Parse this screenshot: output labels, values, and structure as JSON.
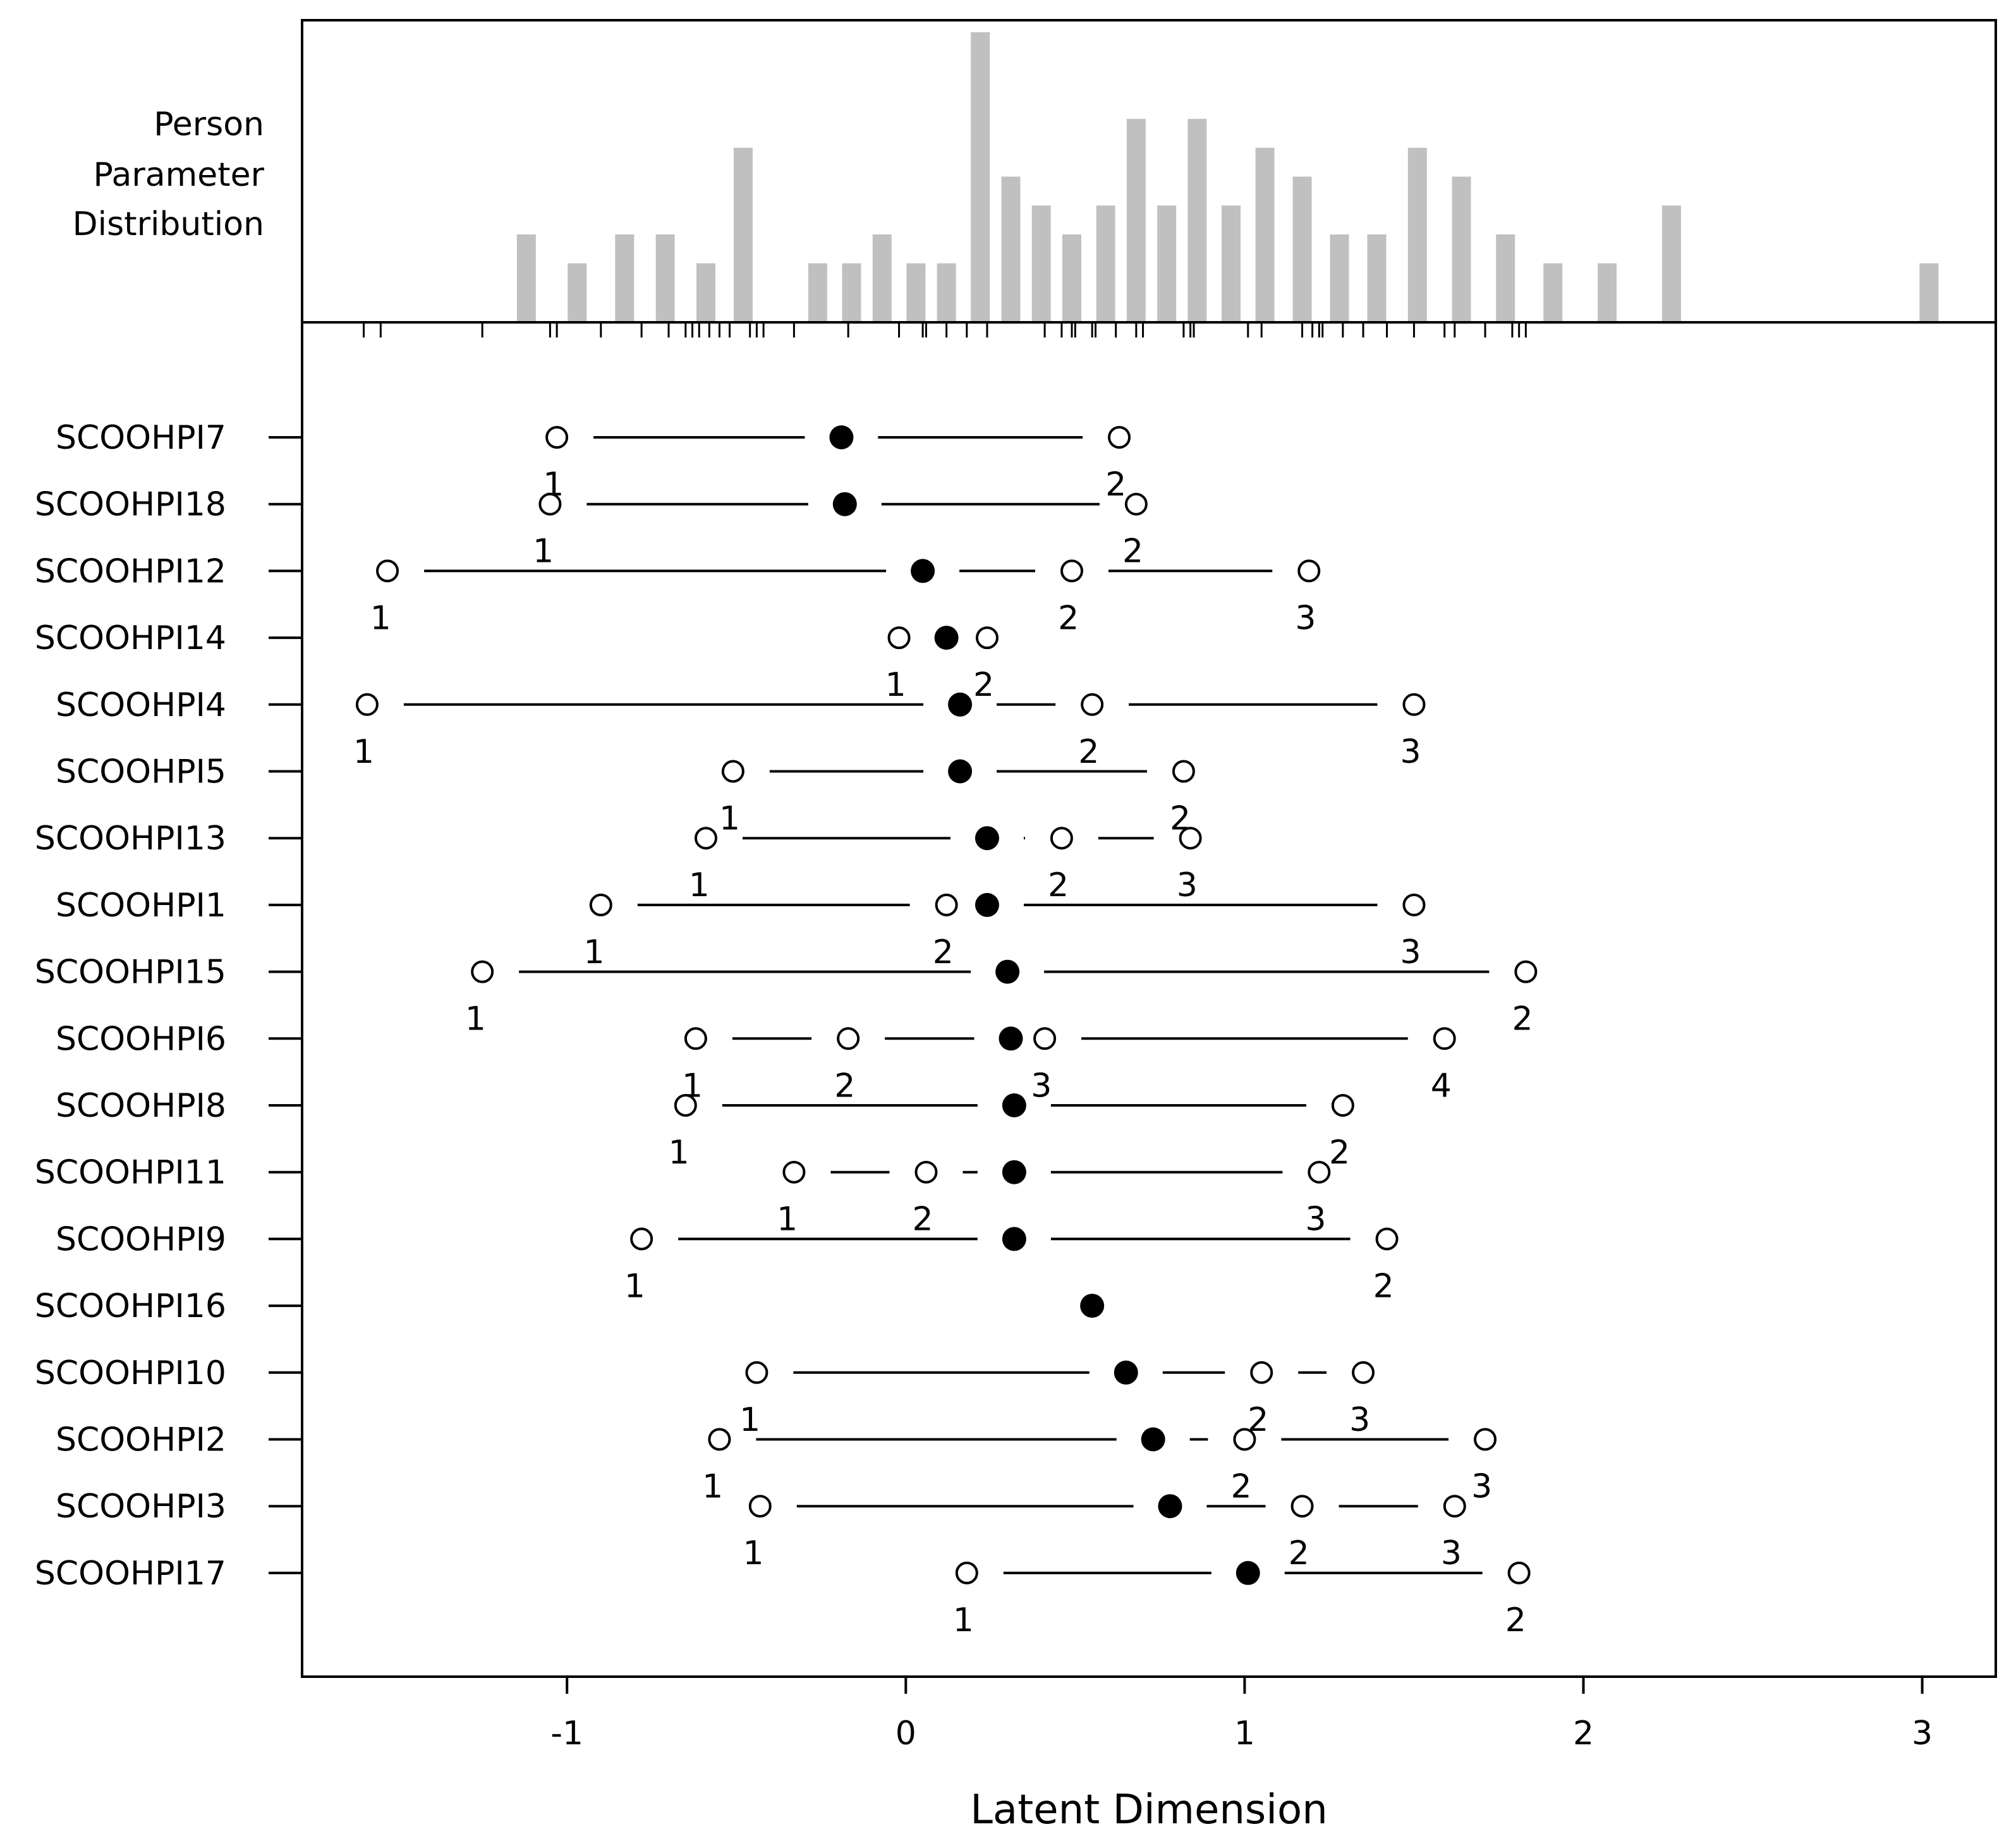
{
  "chart_data": {
    "type": "person-item map",
    "x_axis": {
      "label": "Latent Dimension",
      "range": [
        -1.8,
        3.2
      ],
      "ticks": [
        -1,
        0,
        1,
        2,
        3
      ],
      "tick_labels": [
        "-1",
        "0",
        "1",
        "2",
        "3"
      ]
    },
    "histogram": {
      "title_lines": [
        "Person",
        "Parameter",
        "Distribution"
      ],
      "color": "#c0c0c0",
      "max_count": 10,
      "bars": [
        {
          "x": -1.12,
          "count": 3
        },
        {
          "x": -0.97,
          "count": 2
        },
        {
          "x": -0.83,
          "count": 3
        },
        {
          "x": -0.71,
          "count": 3
        },
        {
          "x": -0.59,
          "count": 2
        },
        {
          "x": -0.48,
          "count": 6
        },
        {
          "x": -0.26,
          "count": 2
        },
        {
          "x": -0.16,
          "count": 2
        },
        {
          "x": -0.07,
          "count": 3
        },
        {
          "x": 0.03,
          "count": 2
        },
        {
          "x": 0.12,
          "count": 2
        },
        {
          "x": 0.22,
          "count": 10
        },
        {
          "x": 0.31,
          "count": 5
        },
        {
          "x": 0.4,
          "count": 4
        },
        {
          "x": 0.49,
          "count": 3
        },
        {
          "x": 0.59,
          "count": 4
        },
        {
          "x": 0.68,
          "count": 7
        },
        {
          "x": 0.77,
          "count": 4
        },
        {
          "x": 0.86,
          "count": 7
        },
        {
          "x": 0.96,
          "count": 4
        },
        {
          "x": 1.06,
          "count": 6
        },
        {
          "x": 1.17,
          "count": 5
        },
        {
          "x": 1.28,
          "count": 3
        },
        {
          "x": 1.39,
          "count": 3
        },
        {
          "x": 1.51,
          "count": 6
        },
        {
          "x": 1.64,
          "count": 5
        },
        {
          "x": 1.77,
          "count": 3
        },
        {
          "x": 1.91,
          "count": 2
        },
        {
          "x": 2.07,
          "count": 2
        },
        {
          "x": 2.26,
          "count": 4
        },
        {
          "x": 3.02,
          "count": 2
        }
      ]
    },
    "threshold_rug": [
      -1.6,
      -1.55,
      -1.25,
      -1.05,
      -1.03,
      -0.9,
      -0.78,
      -0.7,
      -0.65,
      -0.63,
      -0.61,
      -0.58,
      -0.55,
      -0.52,
      -0.46,
      -0.44,
      -0.42,
      -0.33,
      -0.17,
      -0.02,
      0.05,
      0.06,
      0.12,
      0.18,
      0.24,
      0.41,
      0.46,
      0.49,
      0.5,
      0.55,
      0.56,
      0.62,
      0.68,
      0.7,
      0.82,
      0.84,
      0.85,
      1.01,
      1.05,
      1.17,
      1.2,
      1.22,
      1.23,
      1.29,
      1.35,
      1.42,
      1.5,
      1.59,
      1.62,
      1.71,
      1.79,
      1.81,
      1.83
    ],
    "items": [
      {
        "name": "SCOOHPI7",
        "location": -0.19,
        "thresholds": [
          -1.03,
          0.63
        ],
        "labels": [
          {
            "text": "1",
            "x": -1.04,
            "pos": "below"
          },
          {
            "text": "2",
            "x": 0.62,
            "pos": "below"
          }
        ]
      },
      {
        "name": "SCOOHPI18",
        "location": -0.18,
        "thresholds": [
          -1.05,
          0.68
        ],
        "labels": [
          {
            "text": "1",
            "x": -1.07,
            "pos": "below"
          },
          {
            "text": "2",
            "x": 0.67,
            "pos": "below"
          }
        ]
      },
      {
        "name": "SCOOHPI12",
        "location": 0.05,
        "thresholds": [
          -1.53,
          0.49,
          1.19
        ],
        "labels": [
          {
            "text": "1",
            "x": -1.55,
            "pos": "below"
          },
          {
            "text": "2",
            "x": 0.48,
            "pos": "below"
          },
          {
            "text": "3",
            "x": 1.18,
            "pos": "below"
          }
        ]
      },
      {
        "name": "SCOOHPI14",
        "location": 0.12,
        "thresholds": [
          -0.02,
          0.24
        ],
        "labels": [
          {
            "text": "1",
            "x": -0.03,
            "pos": "below"
          },
          {
            "text": "2",
            "x": 0.23,
            "pos": "below"
          }
        ]
      },
      {
        "name": "SCOOHPI4",
        "location": 0.16,
        "thresholds": [
          -1.59,
          0.55,
          1.5
        ],
        "labels": [
          {
            "text": "1",
            "x": -1.6,
            "pos": "below"
          },
          {
            "text": "2",
            "x": 0.54,
            "pos": "below"
          },
          {
            "text": "3",
            "x": 1.49,
            "pos": "below"
          }
        ]
      },
      {
        "name": "SCOOHPI5",
        "location": 0.16,
        "thresholds": [
          -0.51,
          0.82
        ],
        "labels": [
          {
            "text": "1",
            "x": -0.52,
            "pos": "below"
          },
          {
            "text": "2",
            "x": 0.81,
            "pos": "below"
          }
        ]
      },
      {
        "name": "SCOOHPI13",
        "location": 0.24,
        "thresholds": [
          -0.59,
          0.46,
          0.84
        ],
        "labels": [
          {
            "text": "1",
            "x": -0.61,
            "pos": "below"
          },
          {
            "text": "2",
            "x": 0.45,
            "pos": "below"
          },
          {
            "text": "3",
            "x": 0.83,
            "pos": "below"
          }
        ]
      },
      {
        "name": "SCOOHPI1",
        "location": 0.24,
        "thresholds": [
          -0.9,
          0.12,
          1.5
        ],
        "labels": [
          {
            "text": "1",
            "x": -0.92,
            "pos": "below"
          },
          {
            "text": "2",
            "x": 0.11,
            "pos": "below"
          },
          {
            "text": "3",
            "x": 1.49,
            "pos": "below"
          }
        ]
      },
      {
        "name": "SCOOHPI15",
        "location": 0.3,
        "thresholds": [
          -1.25,
          1.83
        ],
        "labels": [
          {
            "text": "1",
            "x": -1.27,
            "pos": "below"
          },
          {
            "text": "2",
            "x": 1.82,
            "pos": "below"
          }
        ]
      },
      {
        "name": "SCOOHPI6",
        "location": 0.31,
        "thresholds": [
          -0.62,
          -0.17,
          0.41,
          1.59
        ],
        "labels": [
          {
            "text": "1",
            "x": -0.63,
            "pos": "below"
          },
          {
            "text": "2",
            "x": -0.18,
            "pos": "below"
          },
          {
            "text": "3",
            "x": 0.4,
            "pos": "below"
          },
          {
            "text": "4",
            "x": 1.58,
            "pos": "below"
          }
        ]
      },
      {
        "name": "SCOOHPI8",
        "location": 0.32,
        "thresholds": [
          -0.65,
          1.29
        ],
        "labels": [
          {
            "text": "1",
            "x": -0.67,
            "pos": "below"
          },
          {
            "text": "2",
            "x": 1.28,
            "pos": "below"
          }
        ]
      },
      {
        "name": "SCOOHPI11",
        "location": 0.32,
        "thresholds": [
          -0.33,
          0.06,
          1.22
        ],
        "labels": [
          {
            "text": "1",
            "x": -0.35,
            "pos": "below"
          },
          {
            "text": "2",
            "x": 0.05,
            "pos": "below"
          },
          {
            "text": "3",
            "x": 1.21,
            "pos": "below"
          }
        ]
      },
      {
        "name": "SCOOHPI9",
        "location": 0.32,
        "thresholds": [
          -0.78,
          1.42
        ],
        "labels": [
          {
            "text": "1",
            "x": -0.8,
            "pos": "below"
          },
          {
            "text": "2",
            "x": 1.41,
            "pos": "below"
          }
        ]
      },
      {
        "name": "SCOOHPI16",
        "location": 0.55,
        "thresholds": [],
        "labels": []
      },
      {
        "name": "SCOOHPI10",
        "location": 0.65,
        "thresholds": [
          -0.44,
          1.05,
          1.35
        ],
        "labels": [
          {
            "text": "1",
            "x": -0.46,
            "pos": "below"
          },
          {
            "text": "2",
            "x": 1.04,
            "pos": "below"
          },
          {
            "text": "3",
            "x": 1.34,
            "pos": "below"
          }
        ]
      },
      {
        "name": "SCOOHPI2",
        "location": 0.73,
        "thresholds": [
          -0.55,
          1.0,
          1.71
        ],
        "labels": [
          {
            "text": "1",
            "x": -0.57,
            "pos": "below"
          },
          {
            "text": "2",
            "x": 0.99,
            "pos": "below"
          },
          {
            "text": "3",
            "x": 1.7,
            "pos": "below"
          }
        ]
      },
      {
        "name": "SCOOHPI3",
        "location": 0.78,
        "thresholds": [
          -0.43,
          1.17,
          1.62
        ],
        "labels": [
          {
            "text": "1",
            "x": -0.45,
            "pos": "below"
          },
          {
            "text": "2",
            "x": 1.16,
            "pos": "below"
          },
          {
            "text": "3",
            "x": 1.61,
            "pos": "below"
          }
        ]
      },
      {
        "name": "SCOOHPI17",
        "location": 1.01,
        "thresholds": [
          0.18,
          1.81
        ],
        "labels": [
          {
            "text": "1",
            "x": 0.17,
            "pos": "below"
          },
          {
            "text": "2",
            "x": 1.8,
            "pos": "below"
          }
        ]
      }
    ]
  }
}
